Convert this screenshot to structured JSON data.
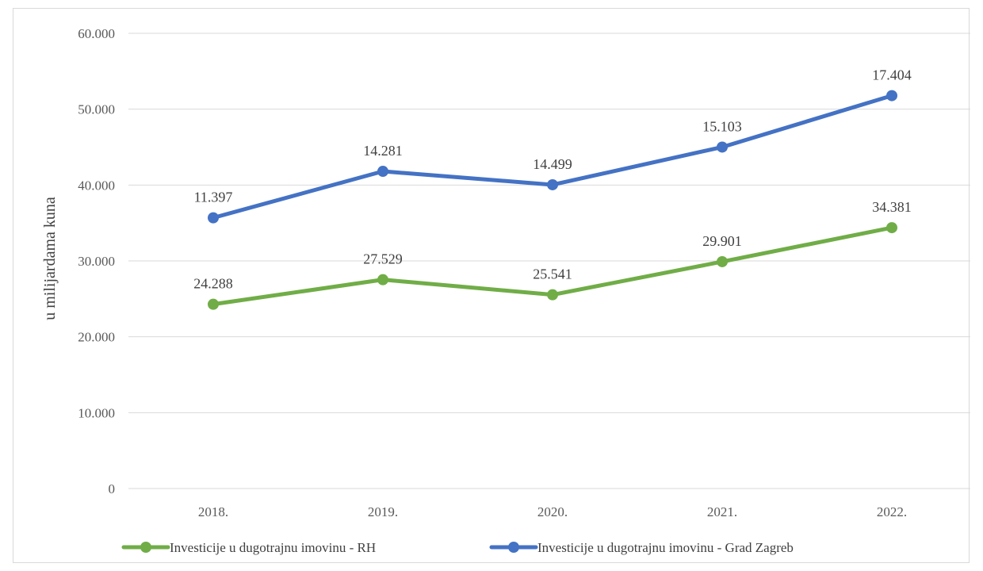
{
  "chart_data": {
    "type": "line",
    "categories": [
      "2018.",
      "2019.",
      "2020.",
      "2021.",
      "2022."
    ],
    "ylabel": "u milijardama kuna",
    "xlabel": "",
    "ylim": [
      0,
      60000
    ],
    "y_ticks": [
      0,
      10000,
      20000,
      30000,
      40000,
      50000,
      60000
    ],
    "y_tick_labels": [
      "0",
      "10.000",
      "20.000",
      "30.000",
      "40.000",
      "50.000",
      "60.000"
    ],
    "grid": true,
    "legend_position": "bottom",
    "series": [
      {
        "name": "Investicije u dugotrajnu imovinu - RH",
        "color": "#70ad47",
        "values": [
          24288,
          27529,
          25541,
          29901,
          34381
        ],
        "labels": [
          "24.288",
          "27.529",
          "25.541",
          "29.901",
          "34.381"
        ]
      },
      {
        "name": "Investicije u dugotrajnu imovinu - Grad Zagreb",
        "color": "#4472c4",
        "values": [
          35685,
          41810,
          40040,
          45004,
          51785
        ],
        "labels": [
          "11.397",
          "14.281",
          "14.499",
          "15.103",
          "17.404"
        ]
      }
    ]
  }
}
